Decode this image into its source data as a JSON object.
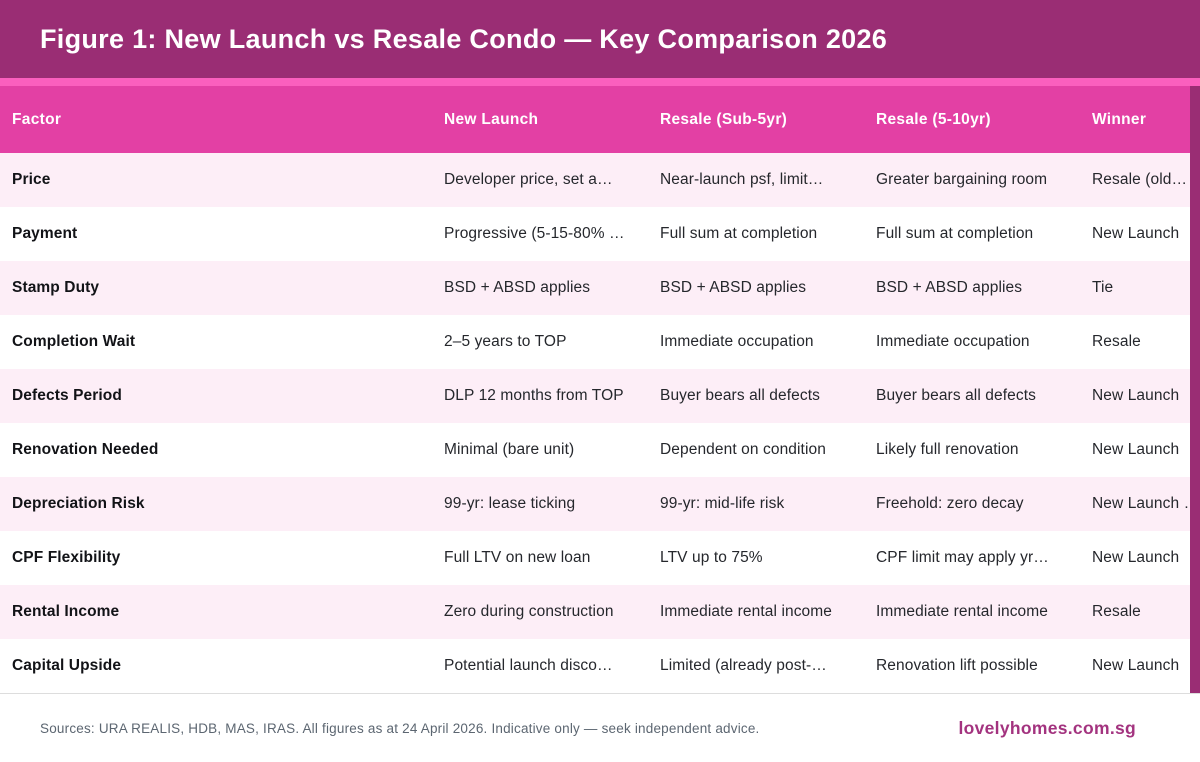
{
  "banner": {
    "title": "Figure 1: New Launch vs Resale Condo — Key Comparison 2026"
  },
  "table": {
    "columns": [
      "Factor",
      "New Launch",
      "Resale (Sub-5yr)",
      "Resale (5-10yr)",
      "Winner"
    ],
    "rows": [
      {
        "factor": "Price",
        "new_launch": "Developer price, set a…",
        "resale_sub5": "Near-launch psf, limit…",
        "resale_5_10": "Greater bargaining room",
        "winner": "Resale (old…"
      },
      {
        "factor": "Payment",
        "new_launch": "Progressive (5-15-80% …",
        "resale_sub5": "Full sum at completion",
        "resale_5_10": "Full sum at completion",
        "winner": "New Launch"
      },
      {
        "factor": "Stamp Duty",
        "new_launch": "BSD + ABSD applies",
        "resale_sub5": "BSD + ABSD applies",
        "resale_5_10": "BSD + ABSD applies",
        "winner": "Tie"
      },
      {
        "factor": "Completion Wait",
        "new_launch": "2–5 years to TOP",
        "resale_sub5": "Immediate occupation",
        "resale_5_10": "Immediate occupation",
        "winner": "Resale"
      },
      {
        "factor": "Defects Period",
        "new_launch": "DLP 12 months from TOP",
        "resale_sub5": "Buyer bears all defects",
        "resale_5_10": "Buyer bears all defects",
        "winner": "New Launch"
      },
      {
        "factor": "Renovation Needed",
        "new_launch": "Minimal (bare unit)",
        "resale_sub5": "Dependent on condition",
        "resale_5_10": "Likely full renovation",
        "winner": "New Launch"
      },
      {
        "factor": "Depreciation Risk",
        "new_launch": "99-yr: lease ticking",
        "resale_sub5": "99-yr: mid-life risk",
        "resale_5_10": "Freehold: zero decay",
        "winner": "New Launch …"
      },
      {
        "factor": "CPF Flexibility",
        "new_launch": "Full LTV on new loan",
        "resale_sub5": "LTV up to 75%",
        "resale_5_10": "CPF limit may apply yr…",
        "winner": "New Launch"
      },
      {
        "factor": "Rental Income",
        "new_launch": "Zero during construction",
        "resale_sub5": "Immediate rental income",
        "resale_5_10": "Immediate rental income",
        "winner": "Resale"
      },
      {
        "factor": "Capital Upside",
        "new_launch": "Potential launch disco…",
        "resale_sub5": "Limited (already post-…",
        "resale_5_10": "Renovation lift possible",
        "winner": "New Launch"
      }
    ]
  },
  "footer": {
    "sources": "Sources: URA REALIS, HDB, MAS, IRAS. All figures as at 24 April 2026. Indicative only — seek independent advice.",
    "site": "lovelyhomes.com.sg"
  },
  "colors": {
    "banner_bg": "#9A2D74",
    "stripe": "#FB5FBE",
    "header_bg": "#E340A4",
    "row_alt_bg": "#FDEEF7",
    "site_text": "#A3337F"
  }
}
